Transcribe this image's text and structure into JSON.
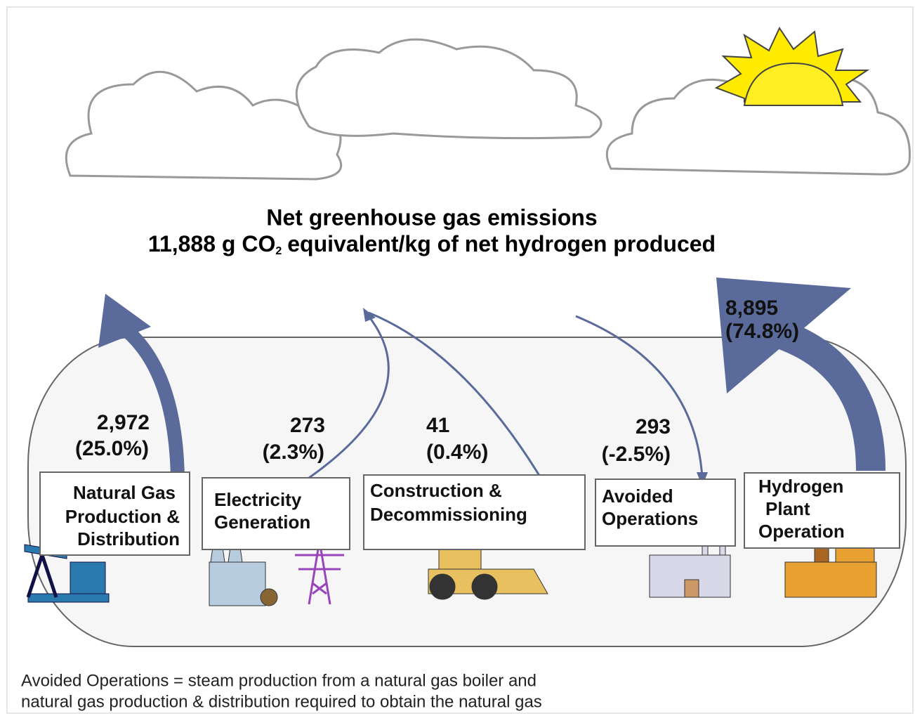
{
  "title": {
    "line1": "Net greenhouse gas emissions",
    "line2": {
      "before": "11,888 g CO",
      "subscript": "2",
      "after": "equivalent/kg of net hydrogen produced"
    }
  },
  "stages": [
    {
      "label": [
        "Natural Gas",
        "Production &",
        "Distribution"
      ],
      "value": "2,972",
      "percent": "(25.0%)"
    },
    {
      "label": [
        "Electricity",
        "Generation"
      ],
      "value": "273",
      "percent": "(2.3%)"
    },
    {
      "label": [
        "Construction &",
        "Decommissioning"
      ],
      "value": "41",
      "percent": "(0.4%)"
    },
    {
      "label": [
        "Avoided",
        "Operations"
      ],
      "value": "293",
      "percent": "(-2.5%)"
    },
    {
      "label": [
        "Hydrogen",
        "Plant",
        "Operation"
      ],
      "value": "8,895",
      "percent": "(74.8%)"
    }
  ],
  "footnote": [
    "Avoided Operations = steam production from a natural gas boiler and",
    "natural gas production & distribution required to obtain the natural gas"
  ]
}
